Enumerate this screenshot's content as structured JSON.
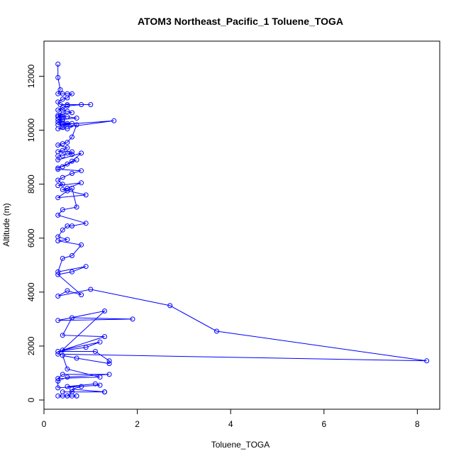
{
  "chart_data": {
    "type": "line",
    "title": "ATOM3 Northeast_Pacific_1 Toluene_TOGA",
    "xlabel": "Toluene_TOGA",
    "ylabel": "Altitude (m)",
    "xlim": [
      0,
      8.5
    ],
    "ylim": [
      -200,
      13200
    ],
    "x_ticks": [
      0,
      2,
      4,
      6,
      8
    ],
    "y_ticks": [
      0,
      2000,
      4000,
      6000,
      8000,
      10000,
      12000
    ],
    "grid": false,
    "legend": "none",
    "series_color": "#0000ff",
    "series": [
      {
        "x": [
          0.3,
          0.3,
          0.35,
          0.3,
          0.4,
          0.5,
          0.6,
          0.5,
          0.4,
          0.3,
          0.35,
          0.5,
          1.0,
          0.8,
          0.5,
          0.4,
          0.3,
          0.4,
          0.5,
          0.6,
          0.4,
          0.3,
          0.35,
          0.3,
          0.4,
          0.5,
          0.7,
          0.4,
          0.3,
          0.4,
          0.3,
          0.4,
          0.5,
          0.6,
          0.5,
          0.4,
          0.3,
          1.5,
          0.4,
          0.3,
          0.5,
          0.7,
          0.6,
          0.5,
          0.4,
          0.3,
          0.5,
          0.4,
          0.3,
          0.6,
          0.6,
          0.5,
          0.4,
          0.3,
          0.3,
          0.8,
          0.6,
          0.5,
          0.4,
          0.7,
          0.3,
          0.3,
          0.8,
          0.6,
          0.4,
          0.3,
          0.4,
          0.3,
          0.8,
          0.5,
          0.4,
          0.9,
          0.3,
          0.5,
          0.6,
          0.7,
          0.4,
          0.3,
          0.9,
          0.6,
          0.5,
          0.4,
          0.3,
          0.5,
          0.3,
          0.8,
          0.6,
          0.4,
          0.3,
          0.9,
          0.6,
          0.3,
          0.8,
          0.5,
          0.3,
          1.0,
          2.7,
          3.7,
          8.2,
          0.3,
          1.3,
          0.3,
          1.9,
          0.6,
          0.4,
          1.3,
          0.4,
          1.2,
          0.9,
          0.3,
          1.1,
          1.4,
          1.4,
          0.7,
          0.4,
          0.5,
          1.2,
          0.3,
          0.4,
          1.4,
          0.5,
          0.3,
          0.3,
          1.2,
          1.1,
          0.5,
          0.8,
          0.6,
          1.3,
          1.3,
          0.4,
          0.6,
          0.5,
          0.7,
          0.3,
          0.4,
          0.5,
          0.6,
          0.7
        ],
        "y": [
          12450,
          11950,
          11500,
          11350,
          11350,
          11350,
          11350,
          11200,
          11150,
          11050,
          10950,
          10950,
          10950,
          10950,
          10900,
          10850,
          10750,
          10750,
          10700,
          10650,
          10600,
          10550,
          10550,
          10500,
          10500,
          10500,
          10450,
          10400,
          10400,
          10350,
          10300,
          10250,
          10250,
          10250,
          10200,
          10200,
          10200,
          10350,
          10100,
          10050,
          10050,
          10200,
          9750,
          9550,
          9500,
          9450,
          9350,
          9250,
          9200,
          9200,
          9100,
          9150,
          9050,
          9050,
          8900,
          9150,
          8850,
          8750,
          8650,
          8900,
          8600,
          8550,
          8500,
          8400,
          8250,
          8150,
          8000,
          7950,
          8050,
          7850,
          7800,
          7600,
          7500,
          7750,
          7850,
          7150,
          7050,
          6850,
          6550,
          6450,
          6450,
          6300,
          6050,
          5950,
          5900,
          5750,
          5350,
          5250,
          4750,
          4950,
          4750,
          4650,
          3900,
          4050,
          3850,
          4100,
          3500,
          2550,
          1450,
          1700,
          3300,
          2950,
          3000,
          3050,
          2400,
          2350,
          1850,
          2150,
          1950,
          1800,
          1800,
          1450,
          1350,
          1550,
          1650,
          1150,
          850,
          800,
          950,
          950,
          850,
          700,
          450,
          550,
          600,
          500,
          500,
          400,
          300,
          300,
          300,
          300,
          150,
          150,
          150,
          150,
          150,
          150,
          150
        ]
      }
    ]
  }
}
